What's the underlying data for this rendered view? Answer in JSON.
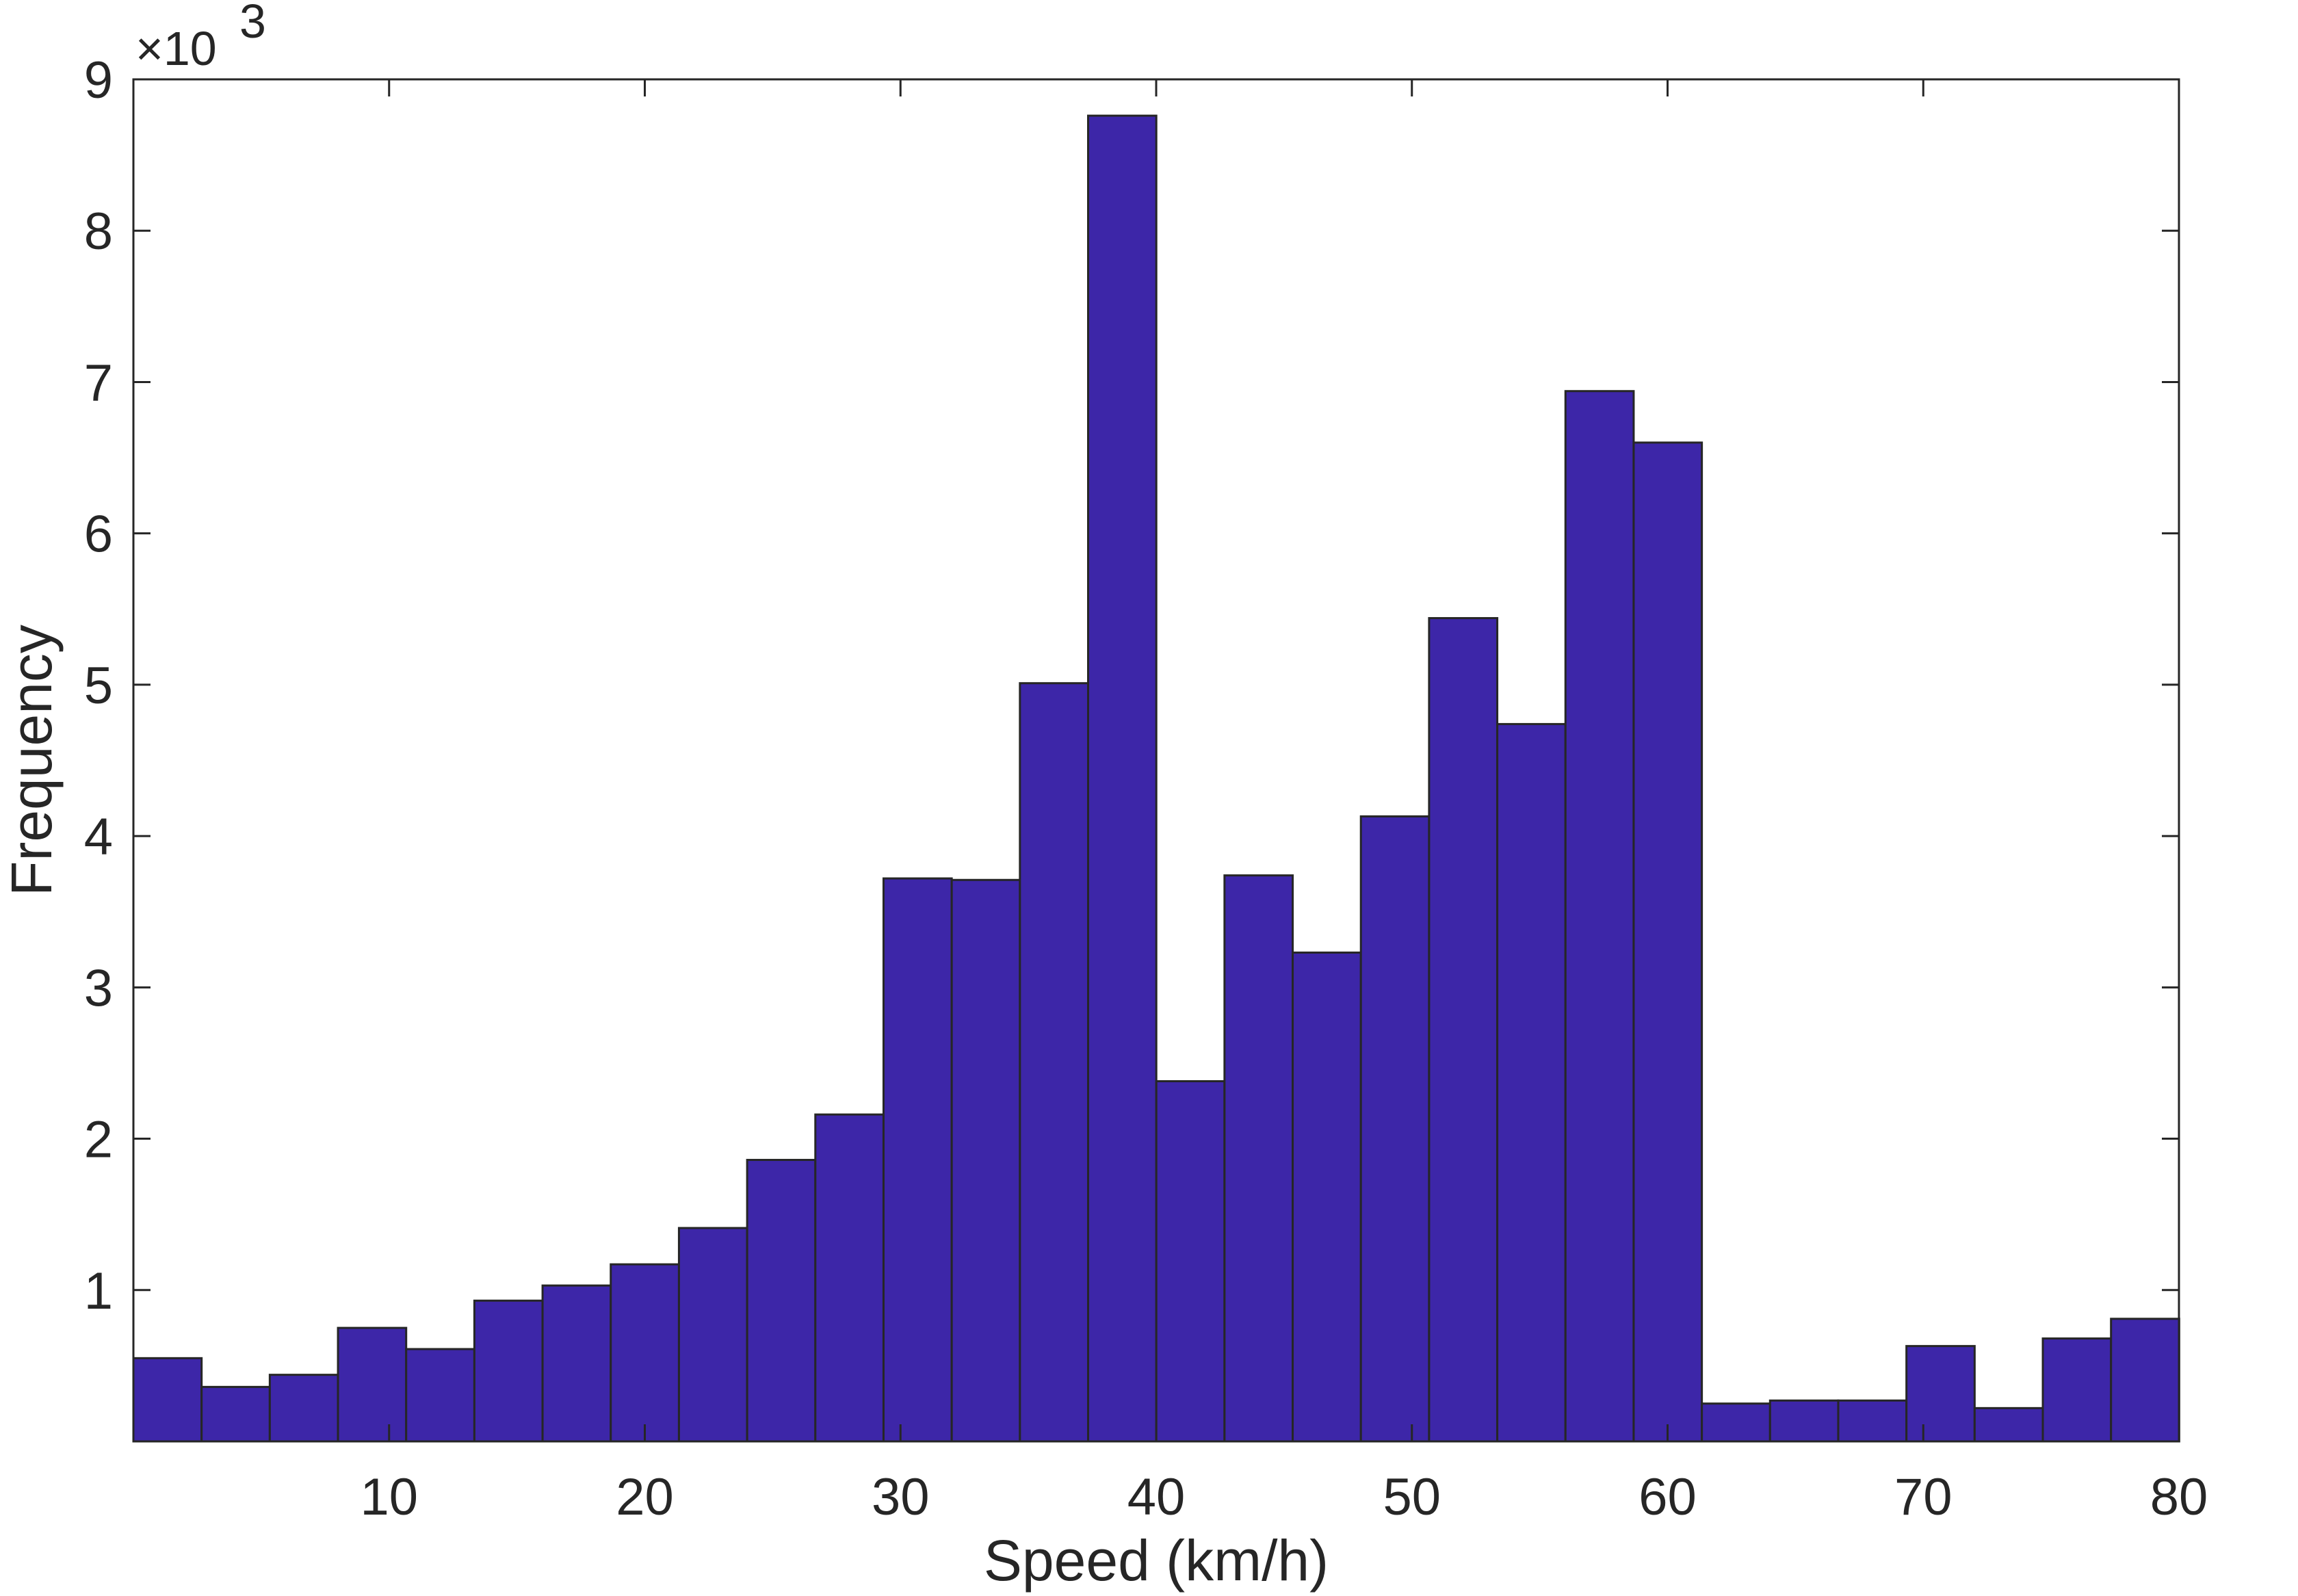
{
  "chart_data": {
    "type": "bar",
    "title": "",
    "xlabel": "Speed (km/h)",
    "ylabel": "Frequency",
    "y_exponent_label": {
      "base": "×10",
      "power": "3"
    },
    "xlim": [
      0,
      80
    ],
    "ylim": [
      0,
      9
    ],
    "xticks": [
      "10",
      "20",
      "30",
      "40",
      "50",
      "60",
      "70",
      "80"
    ],
    "yticks": [
      "1",
      "2",
      "3",
      "4",
      "5",
      "6",
      "7",
      "8",
      "9"
    ],
    "grid": false,
    "bar_color": "#3d26a8",
    "edge_color": "#262626",
    "bin_width": 2.667,
    "bin_start": 0,
    "values": [
      0.55,
      0.36,
      0.44,
      0.75,
      0.61,
      0.93,
      1.03,
      1.17,
      1.41,
      1.86,
      2.16,
      3.72,
      3.71,
      5.01,
      8.76,
      2.38,
      3.74,
      3.23,
      4.13,
      5.44,
      4.74,
      6.94,
      6.6,
      0.25,
      0.27,
      0.27,
      0.63,
      0.22,
      0.68,
      0.81
    ]
  }
}
